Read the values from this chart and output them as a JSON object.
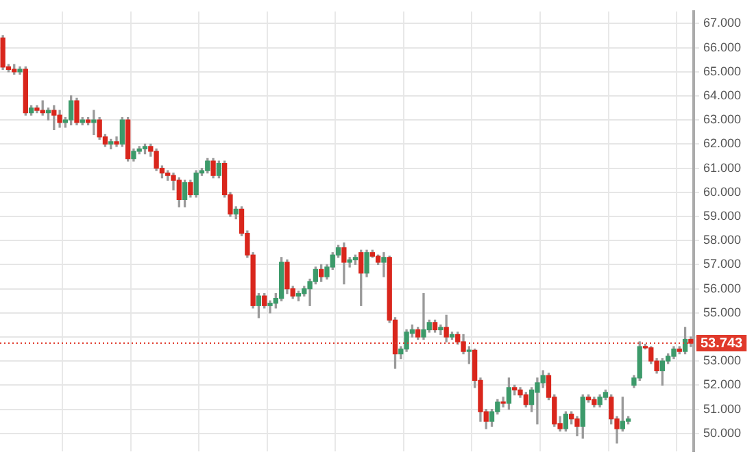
{
  "chart_data": {
    "type": "candlestick",
    "categories": [
      null,
      null,
      null,
      null,
      null,
      null,
      null,
      null,
      null,
      null,
      null,
      null,
      null,
      null,
      null,
      null,
      null,
      null,
      null,
      null,
      null,
      null,
      null,
      null,
      null,
      null,
      null,
      null,
      null,
      null,
      null,
      null,
      null,
      null,
      null,
      null,
      null,
      null,
      null,
      null,
      null,
      null,
      null,
      null,
      null,
      null,
      null,
      null,
      null,
      null,
      null,
      null,
      null,
      null,
      null,
      null,
      null,
      null,
      null,
      null,
      null,
      null,
      null,
      null,
      null,
      null,
      null,
      null,
      null,
      null,
      null,
      null,
      null,
      null,
      null,
      null,
      null,
      null,
      null,
      null,
      null,
      null,
      null,
      null,
      null,
      null,
      null,
      null,
      null,
      null,
      null,
      null,
      null,
      null,
      null,
      null,
      null,
      null,
      null,
      null,
      null,
      null,
      null,
      null,
      null,
      null,
      null,
      null,
      null,
      null,
      null,
      null,
      null,
      null,
      null,
      null,
      null,
      null,
      null,
      null,
      null,
      null
    ],
    "ohlc": [
      [
        66.4,
        66.5,
        65.1,
        65.2
      ],
      [
        65.2,
        65.3,
        65.0,
        65.1
      ],
      [
        65.1,
        65.3,
        64.9,
        65.0
      ],
      [
        65.0,
        65.2,
        64.9,
        65.1
      ],
      [
        65.1,
        65.2,
        63.2,
        63.3
      ],
      [
        63.3,
        63.6,
        63.2,
        63.5
      ],
      [
        63.5,
        63.6,
        63.3,
        63.4
      ],
      [
        63.4,
        63.8,
        63.2,
        63.3
      ],
      [
        63.3,
        63.5,
        63.0,
        63.4
      ],
      [
        63.4,
        63.6,
        62.6,
        63.2
      ],
      [
        63.2,
        63.4,
        62.7,
        62.9
      ],
      [
        62.9,
        63.1,
        62.7,
        63.0
      ],
      [
        63.0,
        64.0,
        62.8,
        63.8
      ],
      [
        63.8,
        63.9,
        62.8,
        62.9
      ],
      [
        62.9,
        63.1,
        62.8,
        63.0
      ],
      [
        63.0,
        63.1,
        62.8,
        62.9
      ],
      [
        62.9,
        63.4,
        62.4,
        63.0
      ],
      [
        63.0,
        63.1,
        62.2,
        62.3
      ],
      [
        62.3,
        62.4,
        61.9,
        62.0
      ],
      [
        62.0,
        62.2,
        61.8,
        62.1
      ],
      [
        62.1,
        62.3,
        61.9,
        62.0
      ],
      [
        62.0,
        63.1,
        61.9,
        63.0
      ],
      [
        63.0,
        63.1,
        61.3,
        61.4
      ],
      [
        61.4,
        61.8,
        61.3,
        61.7
      ],
      [
        61.7,
        61.9,
        61.6,
        61.8
      ],
      [
        61.8,
        62.0,
        61.6,
        61.9
      ],
      [
        61.9,
        62.0,
        61.5,
        61.7
      ],
      [
        61.7,
        61.8,
        60.9,
        61.0
      ],
      [
        61.0,
        61.1,
        60.6,
        60.8
      ],
      [
        60.8,
        60.9,
        60.5,
        60.7
      ],
      [
        60.7,
        60.8,
        60.1,
        60.5
      ],
      [
        60.5,
        60.6,
        59.4,
        59.7
      ],
      [
        59.7,
        60.5,
        59.4,
        60.4
      ],
      [
        60.4,
        60.5,
        59.8,
        59.9
      ],
      [
        59.9,
        60.9,
        59.8,
        60.8
      ],
      [
        60.8,
        61.0,
        60.7,
        60.9
      ],
      [
        60.9,
        61.4,
        60.8,
        61.3
      ],
      [
        61.3,
        61.4,
        60.6,
        60.7
      ],
      [
        60.7,
        61.3,
        60.6,
        61.2
      ],
      [
        61.2,
        61.3,
        59.8,
        59.9
      ],
      [
        59.9,
        60.0,
        59.0,
        59.1
      ],
      [
        59.1,
        59.4,
        58.9,
        59.3
      ],
      [
        59.3,
        59.4,
        58.2,
        58.3
      ],
      [
        58.3,
        58.4,
        57.3,
        57.4
      ],
      [
        57.4,
        57.5,
        55.2,
        55.3
      ],
      [
        55.3,
        55.8,
        54.8,
        55.7
      ],
      [
        55.7,
        55.8,
        55.2,
        55.3
      ],
      [
        55.3,
        55.5,
        55.0,
        55.4
      ],
      [
        55.4,
        55.8,
        55.2,
        55.6
      ],
      [
        55.6,
        57.3,
        55.5,
        57.1
      ],
      [
        57.1,
        57.2,
        55.8,
        56.0
      ],
      [
        56.0,
        56.1,
        55.6,
        55.7
      ],
      [
        55.7,
        55.9,
        55.5,
        55.8
      ],
      [
        55.8,
        56.1,
        55.7,
        56.0
      ],
      [
        56.0,
        56.4,
        55.3,
        56.3
      ],
      [
        56.3,
        56.9,
        56.2,
        56.8
      ],
      [
        56.8,
        57.0,
        56.3,
        56.5
      ],
      [
        56.5,
        57.0,
        56.4,
        56.9
      ],
      [
        56.9,
        57.5,
        56.8,
        57.4
      ],
      [
        57.4,
        57.8,
        57.3,
        57.7
      ],
      [
        57.7,
        57.9,
        56.2,
        57.1
      ],
      [
        57.1,
        57.3,
        56.9,
        57.2
      ],
      [
        57.2,
        57.4,
        57.0,
        57.3
      ],
      [
        57.5,
        57.6,
        55.3,
        56.65
      ],
      [
        56.65,
        57.6,
        56.5,
        57.5
      ],
      [
        57.5,
        57.6,
        57.3,
        57.35
      ],
      [
        57.35,
        57.4,
        57.0,
        57.1
      ],
      [
        57.1,
        57.5,
        56.5,
        57.3
      ],
      [
        57.3,
        57.35,
        54.6,
        54.7
      ],
      [
        54.7,
        54.8,
        52.7,
        53.3
      ],
      [
        53.3,
        53.6,
        53.1,
        53.5
      ],
      [
        53.5,
        54.3,
        53.4,
        54.2
      ],
      [
        54.15,
        54.5,
        54.0,
        54.3
      ],
      [
        54.3,
        54.4,
        53.9,
        54.0
      ],
      [
        54.0,
        55.8,
        53.9,
        54.3
      ],
      [
        54.3,
        54.7,
        54.2,
        54.6
      ],
      [
        54.6,
        54.7,
        54.2,
        54.3
      ],
      [
        54.3,
        54.5,
        54.1,
        54.4
      ],
      [
        54.4,
        54.9,
        53.8,
        54.0
      ],
      [
        54.0,
        54.2,
        53.9,
        54.1
      ],
      [
        54.1,
        54.2,
        53.7,
        53.8
      ],
      [
        53.8,
        54.1,
        53.3,
        53.4
      ],
      [
        53.4,
        53.6,
        52.9,
        53.45
      ],
      [
        53.45,
        53.5,
        51.9,
        52.2
      ],
      [
        52.2,
        52.3,
        50.5,
        50.9
      ],
      [
        50.9,
        51.0,
        50.2,
        50.5
      ],
      [
        50.5,
        51.0,
        50.3,
        50.9
      ],
      [
        50.9,
        51.4,
        50.8,
        51.3
      ],
      [
        51.3,
        51.5,
        51.1,
        51.25
      ],
      [
        51.25,
        52.3,
        51.0,
        51.9
      ],
      [
        51.9,
        52.0,
        51.6,
        51.8
      ],
      [
        51.8,
        51.9,
        51.5,
        51.6
      ],
      [
        51.6,
        51.7,
        51.1,
        51.2
      ],
      [
        51.2,
        51.9,
        50.9,
        51.8
      ],
      [
        51.7,
        52.3,
        50.4,
        52.1
      ],
      [
        52.1,
        52.6,
        51.9,
        52.4
      ],
      [
        52.4,
        52.5,
        51.4,
        51.5
      ],
      [
        51.5,
        51.6,
        50.3,
        50.4
      ],
      [
        50.4,
        50.7,
        50.1,
        50.2
      ],
      [
        50.2,
        50.9,
        50.1,
        50.8
      ],
      [
        50.8,
        50.9,
        50.4,
        50.6
      ],
      [
        50.6,
        50.7,
        49.9,
        50.3
      ],
      [
        50.3,
        51.6,
        49.8,
        51.5
      ],
      [
        51.5,
        51.6,
        51.3,
        51.4
      ],
      [
        51.4,
        51.5,
        51.1,
        51.2
      ],
      [
        51.2,
        51.6,
        51.1,
        51.5
      ],
      [
        51.5,
        51.8,
        51.4,
        51.7
      ],
      [
        51.5,
        51.6,
        50.4,
        50.6
      ],
      [
        50.6,
        50.7,
        49.6,
        50.2
      ],
      [
        50.2,
        51.5,
        50.1,
        50.5
      ],
      [
        50.5,
        50.7,
        50.4,
        50.6
      ],
      [
        52.0,
        52.4,
        51.9,
        52.3
      ],
      [
        52.3,
        53.8,
        52.2,
        53.6
      ],
      [
        53.6,
        53.7,
        53.5,
        53.55
      ],
      [
        53.55,
        53.6,
        52.9,
        53.0
      ],
      [
        53.0,
        53.1,
        52.5,
        52.6
      ],
      [
        52.6,
        53.1,
        52.0,
        53.0
      ],
      [
        53.0,
        53.3,
        52.9,
        53.2
      ],
      [
        53.2,
        53.6,
        53.1,
        53.5
      ],
      [
        53.5,
        53.6,
        53.3,
        53.4
      ],
      [
        53.4,
        54.4,
        53.3,
        53.9
      ],
      [
        53.9,
        54.0,
        53.6,
        53.743
      ]
    ],
    "colors": [
      "#d9261c",
      "#d9261c",
      "#d9261c",
      "#3c9a6a",
      "#d9261c",
      "#3c9a6a",
      "#d9261c",
      "#d9261c",
      "#3c9a6a",
      "#d9261c",
      "#d9261c",
      "#3c9a6a",
      "#3c9a6a",
      "#d9261c",
      "#3c9a6a",
      "#d9261c",
      "#3c9a6a",
      "#d9261c",
      "#d9261c",
      "#3c9a6a",
      "#d9261c",
      "#3c9a6a",
      "#d9261c",
      "#3c9a6a",
      "#3c9a6a",
      "#3c9a6a",
      "#d9261c",
      "#d9261c",
      "#d9261c",
      "#d9261c",
      "#d9261c",
      "#d9261c",
      "#3c9a6a",
      "#d9261c",
      "#3c9a6a",
      "#3c9a6a",
      "#3c9a6a",
      "#d9261c",
      "#3c9a6a",
      "#d9261c",
      "#d9261c",
      "#3c9a6a",
      "#d9261c",
      "#d9261c",
      "#d9261c",
      "#3c9a6a",
      "#d9261c",
      "#3c9a6a",
      "#3c9a6a",
      "#3c9a6a",
      "#d9261c",
      "#d9261c",
      "#3c9a6a",
      "#3c9a6a",
      "#3c9a6a",
      "#3c9a6a",
      "#d9261c",
      "#3c9a6a",
      "#3c9a6a",
      "#3c9a6a",
      "#d9261c",
      "#3c9a6a",
      "#3c9a6a",
      "#d9261c",
      "#3c9a6a",
      "#d9261c",
      "#d9261c",
      "#3c9a6a",
      "#d9261c",
      "#d9261c",
      "#3c9a6a",
      "#3c9a6a",
      "#3c9a6a",
      "#d9261c",
      "#3c9a6a",
      "#3c9a6a",
      "#d9261c",
      "#3c9a6a",
      "#d9261c",
      "#3c9a6a",
      "#d9261c",
      "#d9261c",
      "#3c9a6a",
      "#d9261c",
      "#d9261c",
      "#d9261c",
      "#3c9a6a",
      "#3c9a6a",
      "#d9261c",
      "#3c9a6a",
      "#d9261c",
      "#d9261c",
      "#d9261c",
      "#3c9a6a",
      "#3c9a6a",
      "#3c9a6a",
      "#d9261c",
      "#d9261c",
      "#d9261c",
      "#3c9a6a",
      "#d9261c",
      "#d9261c",
      "#3c9a6a",
      "#d9261c",
      "#d9261c",
      "#3c9a6a",
      "#3c9a6a",
      "#d9261c",
      "#d9261c",
      "#3c9a6a",
      "#3c9a6a",
      "#3c9a6a",
      "#3c9a6a",
      "#d9261c",
      "#d9261c",
      "#d9261c",
      "#3c9a6a",
      "#3c9a6a",
      "#3c9a6a",
      "#d9261c",
      "#3c9a6a",
      "#d9261c"
    ],
    "ylim": [
      49.25,
      67.5
    ],
    "yticks": [
      {
        "value": 50,
        "label": "50.000"
      },
      {
        "value": 51,
        "label": "51.000"
      },
      {
        "value": 52,
        "label": "52.000"
      },
      {
        "value": 53,
        "label": "53.000"
      },
      {
        "value": 54,
        "label": null
      },
      {
        "value": 55,
        "label": "55.000"
      },
      {
        "value": 56,
        "label": "56.000"
      },
      {
        "value": 57,
        "label": "57.000"
      },
      {
        "value": 58,
        "label": "58.000"
      },
      {
        "value": 59,
        "label": "59.000"
      },
      {
        "value": 60,
        "label": "60.000"
      },
      {
        "value": 61,
        "label": "61.000"
      },
      {
        "value": 62,
        "label": "62.000"
      },
      {
        "value": 63,
        "label": "63.000"
      },
      {
        "value": 64,
        "label": "64.000"
      },
      {
        "value": 65,
        "label": "65.000"
      },
      {
        "value": 66,
        "label": "66.000"
      },
      {
        "value": 67,
        "label": "67.000"
      }
    ],
    "ref_lines": [
      {
        "axis": "y",
        "value": 53.743,
        "label": "53.743",
        "color": "#e0392b",
        "line_style": "dotted"
      }
    ],
    "grid": true,
    "tick_labels": "y",
    "legend": false
  }
}
